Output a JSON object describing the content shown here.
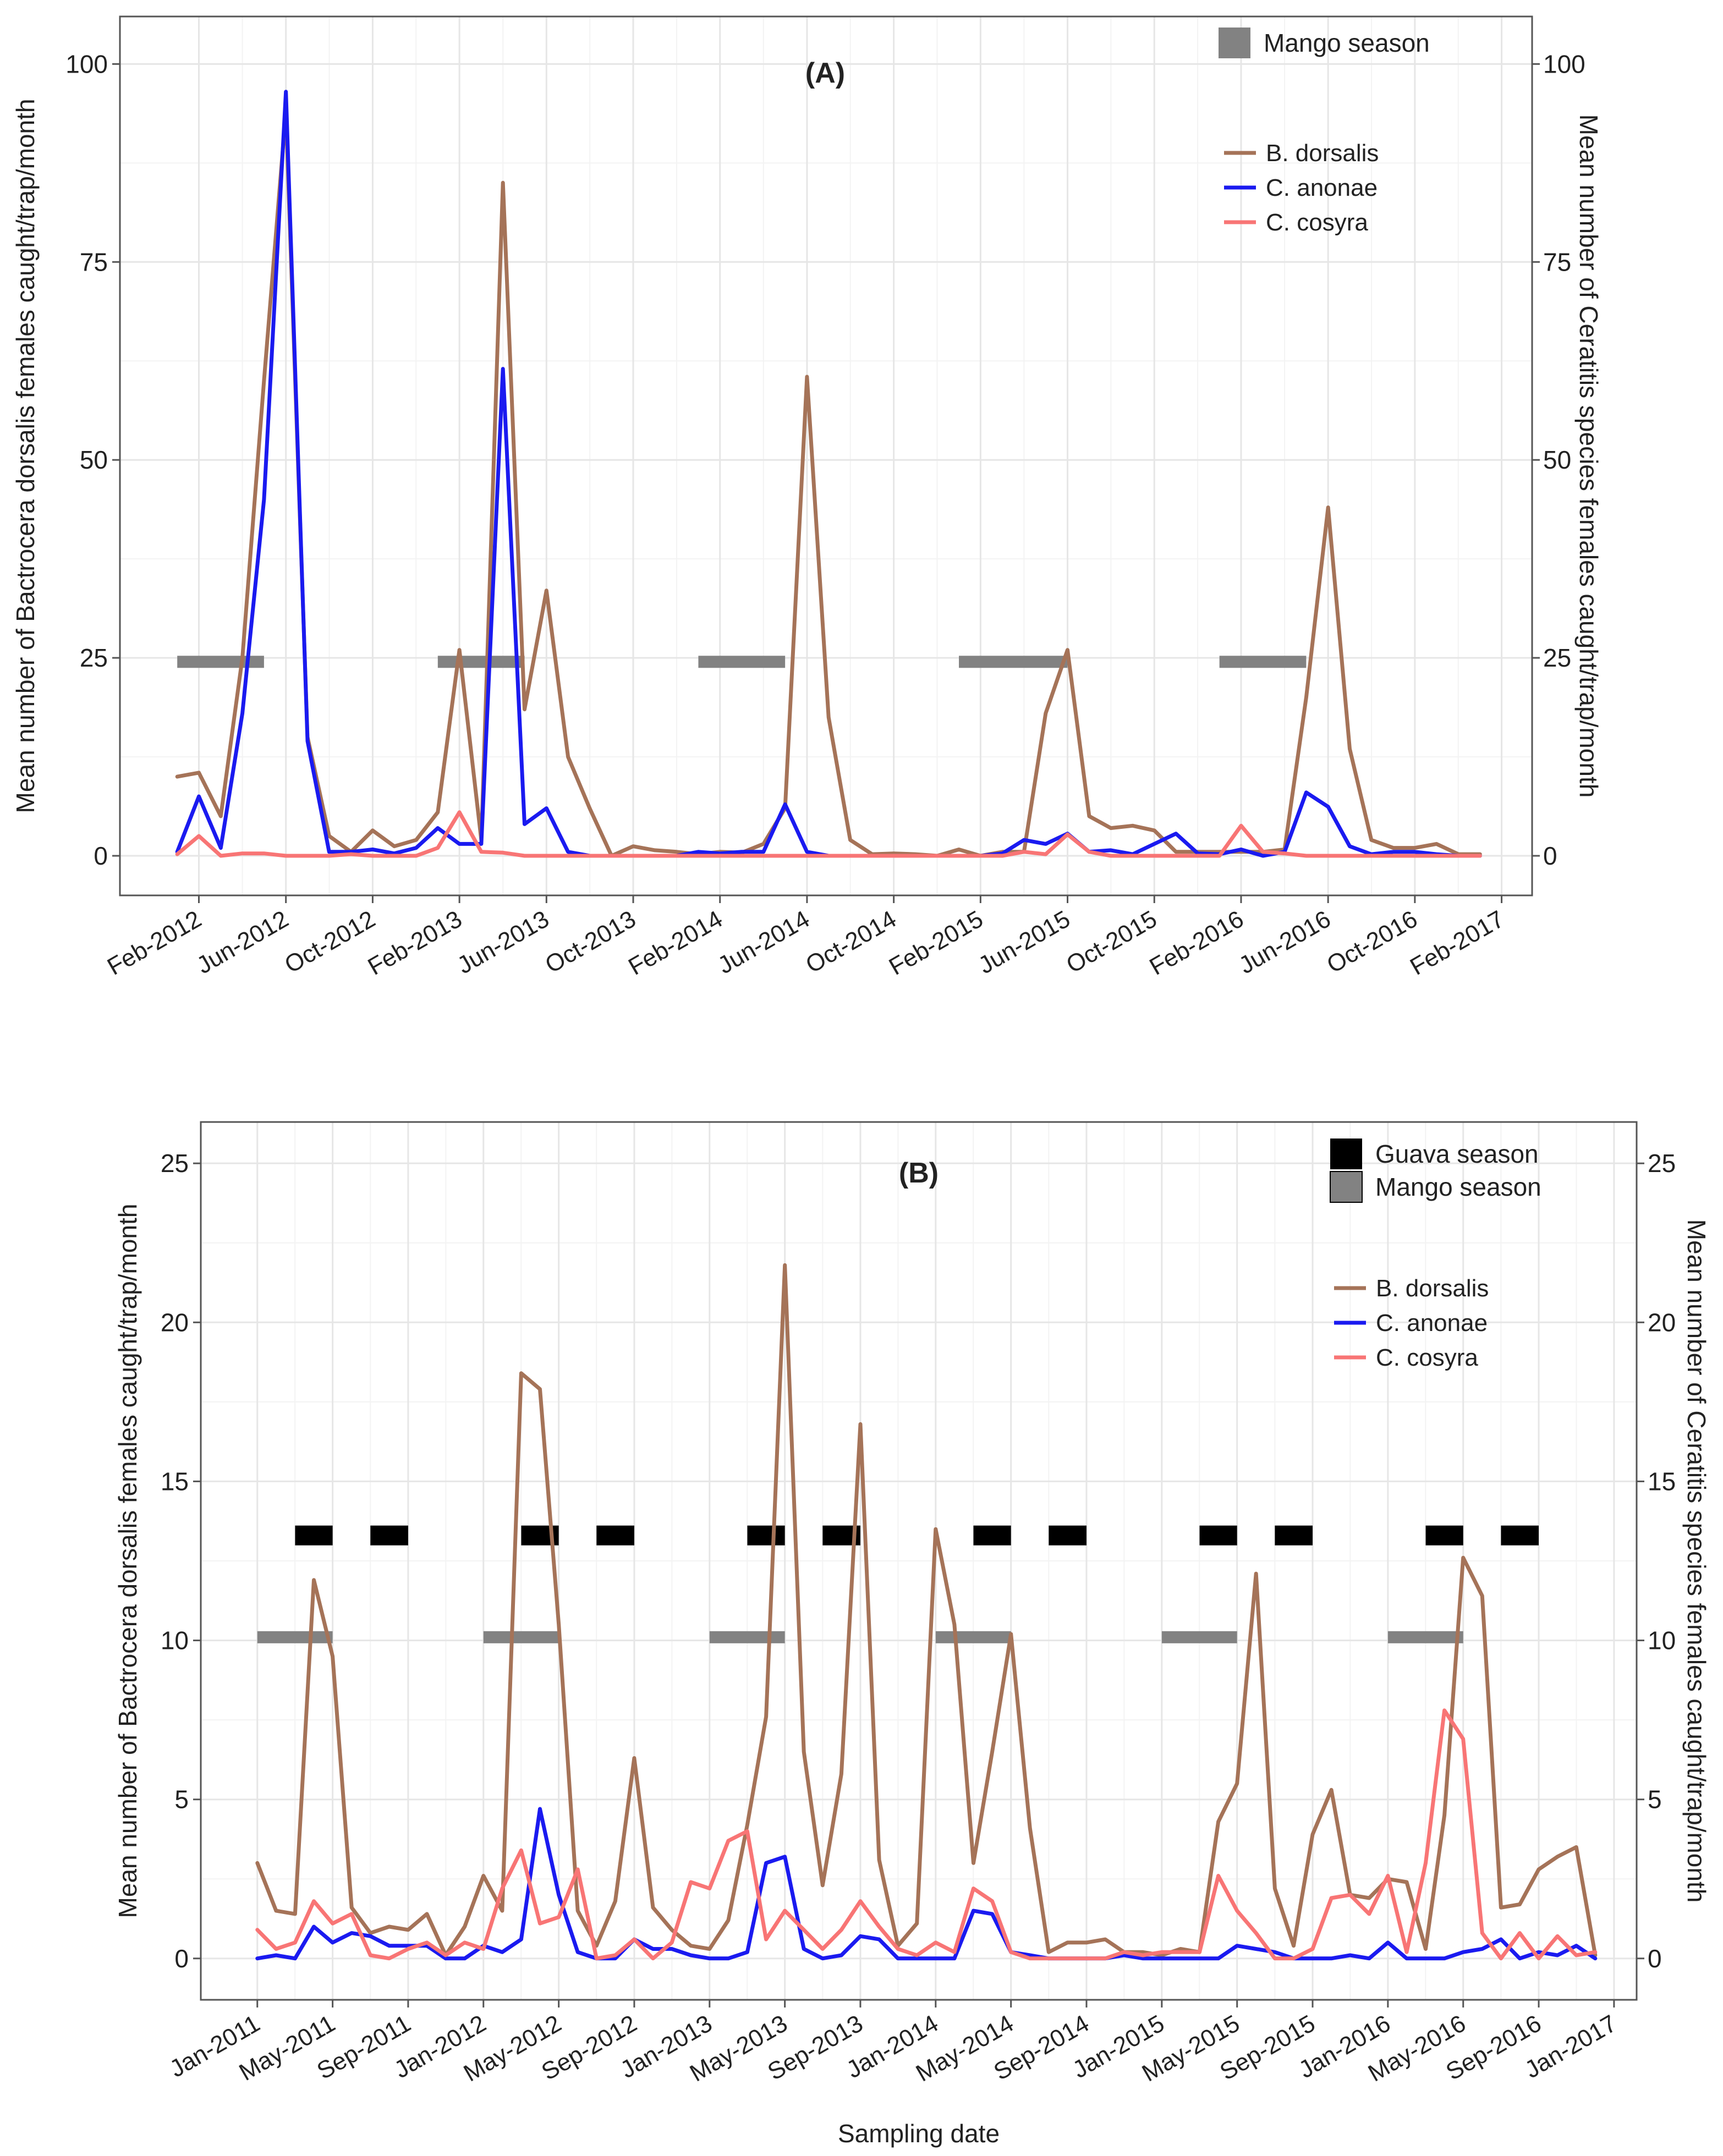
{
  "colors": {
    "bdorsalis": "#A57358",
    "canonae": "#1A1AF0",
    "ccosyra": "#F87575",
    "mango": "#828282",
    "guava": "#000000",
    "grid_major": "#E6E6E6",
    "grid_minor": "#F3F3F3",
    "axis": "#555555"
  },
  "chart_data": [
    {
      "type": "line",
      "panel_label": "(A)",
      "title": "",
      "xlabel": "",
      "ylabel": "Mean number of Bactrocera dorsalis females caught/trap/month",
      "ylabel_right": "Mean number of Ceratitis species females caught/trap/month",
      "grid": true,
      "legend_position": "top-right",
      "xlim": [
        2011.78,
        2017.2
      ],
      "ylim": [
        -5,
        106
      ],
      "x_ticks": [
        2012.083,
        2012.417,
        2012.75,
        2013.083,
        2013.417,
        2013.75,
        2014.083,
        2014.417,
        2014.75,
        2015.083,
        2015.417,
        2015.75,
        2016.083,
        2016.417,
        2016.75,
        2017.083
      ],
      "x_tick_labels": [
        "Feb-2012",
        "Jun-2012",
        "Oct-2012",
        "Feb-2013",
        "Jun-2013",
        "Oct-2013",
        "Feb-2014",
        "Jun-2014",
        "Oct-2014",
        "Feb-2015",
        "Jun-2015",
        "Oct-2015",
        "Feb-2016",
        "Jun-2016",
        "Oct-2016",
        "Feb-2017"
      ],
      "y_ticks": [
        0,
        25,
        50,
        75,
        100
      ],
      "y_tick_labels": [
        "0",
        "25",
        "50",
        "75",
        "100"
      ],
      "y_right_tick_labels": [
        "0",
        "25",
        "50",
        "75",
        "100"
      ],
      "season_legend": [
        {
          "key": "mango",
          "label": "Mango season"
        }
      ],
      "seasons": [
        {
          "type": "mango",
          "y": 24.5,
          "start": 2012.0,
          "end": 2012.333
        },
        {
          "type": "mango",
          "y": 24.5,
          "start": 2013.0,
          "end": 2013.333
        },
        {
          "type": "mango",
          "y": 24.5,
          "start": 2014.0,
          "end": 2014.333
        },
        {
          "type": "mango",
          "y": 24.5,
          "start": 2015.0,
          "end": 2015.417
        },
        {
          "type": "mango",
          "y": 24.5,
          "start": 2016.0,
          "end": 2016.333
        }
      ],
      "x": [
        2012.0,
        2012.083,
        2012.167,
        2012.25,
        2012.333,
        2012.417,
        2012.5,
        2012.583,
        2012.667,
        2012.75,
        2012.833,
        2012.917,
        2013.0,
        2013.083,
        2013.167,
        2013.25,
        2013.333,
        2013.417,
        2013.5,
        2013.583,
        2013.667,
        2013.75,
        2013.833,
        2013.917,
        2014.0,
        2014.083,
        2014.167,
        2014.25,
        2014.333,
        2014.417,
        2014.5,
        2014.583,
        2014.667,
        2014.75,
        2014.833,
        2014.917,
        2015.0,
        2015.083,
        2015.167,
        2015.25,
        2015.333,
        2015.417,
        2015.5,
        2015.583,
        2015.667,
        2015.75,
        2015.833,
        2015.917,
        2016.0,
        2016.083,
        2016.167,
        2016.25,
        2016.333,
        2016.417,
        2016.5,
        2016.583,
        2016.667,
        2016.75,
        2016.833,
        2016.917,
        2017.0
      ],
      "series": [
        {
          "name": "B. dorsalis",
          "color_key": "bdorsalis",
          "values": [
            10,
            10.5,
            5,
            25,
            60,
            94,
            15,
            2.5,
            0.5,
            3.2,
            1.2,
            2,
            5.5,
            26,
            2,
            85,
            18.5,
            33.5,
            12.5,
            6,
            0,
            1.2,
            0.7,
            0.5,
            0.2,
            0.5,
            0.4,
            1.5,
            6,
            60.5,
            17.5,
            2,
            0.2,
            0.3,
            0.2,
            0,
            0.8,
            0,
            0.5,
            0.5,
            18,
            26,
            5,
            3.5,
            3.8,
            3.2,
            0.5,
            0.5,
            0.5,
            0.5,
            0.5,
            0.8,
            20,
            44,
            13.5,
            2,
            1,
            1,
            1.5,
            0.2,
            0.2
          ]
        },
        {
          "name": "C. anonae",
          "color_key": "canonae",
          "values": [
            0.5,
            7.5,
            1,
            18,
            45,
            96.5,
            14.5,
            0.5,
            0.5,
            0.8,
            0.3,
            1,
            3.5,
            1.5,
            1.5,
            61.5,
            4,
            6,
            0.5,
            0,
            0,
            0,
            0,
            0,
            0.5,
            0.3,
            0.5,
            0.5,
            6.5,
            0.5,
            0,
            0,
            0,
            0,
            0,
            0,
            0,
            0,
            0.3,
            2,
            1.5,
            2.8,
            0.5,
            0.7,
            0.2,
            1.5,
            2.8,
            0.3,
            0.2,
            0.8,
            0,
            0.5,
            8,
            6.2,
            1.2,
            0.2,
            0.5,
            0.5,
            0.2,
            0,
            0
          ]
        },
        {
          "name": "C. cosyra",
          "color_key": "ccosyra",
          "values": [
            0.2,
            2.5,
            0,
            0.3,
            0.3,
            0,
            0,
            0,
            0.2,
            0,
            0,
            0,
            1,
            5.5,
            0.5,
            0.4,
            0,
            0,
            0,
            0,
            0,
            0,
            0,
            0,
            0,
            0,
            0,
            0,
            0,
            0,
            0,
            0,
            0,
            0,
            0,
            0,
            0,
            0,
            0,
            0.5,
            0.2,
            2.7,
            0.5,
            0,
            0,
            0,
            0,
            0,
            0,
            3.8,
            0.5,
            0.3,
            0,
            0,
            0,
            0,
            0,
            0,
            0,
            0,
            0
          ]
        }
      ]
    },
    {
      "type": "line",
      "panel_label": "(B)",
      "title": "",
      "xlabel": "Sampling date",
      "ylabel": "Mean number of Bactrocera dorsalis females caught/trap/month",
      "ylabel_right": "Mean number of Ceratitis species females caught/trap/month",
      "grid": true,
      "legend_position": "top-right",
      "xlim": [
        2010.75,
        2017.1
      ],
      "ylim": [
        -1.3,
        26.3
      ],
      "x_ticks": [
        2011.0,
        2011.333,
        2011.667,
        2012.0,
        2012.333,
        2012.667,
        2013.0,
        2013.333,
        2013.667,
        2014.0,
        2014.333,
        2014.667,
        2015.0,
        2015.333,
        2015.667,
        2016.0,
        2016.333,
        2016.667,
        2017.0
      ],
      "x_tick_labels": [
        "Jan-2011",
        "May-2011",
        "Sep-2011",
        "Jan-2012",
        "May-2012",
        "Sep-2012",
        "Jan-2013",
        "May-2013",
        "Sep-2013",
        "Jan-2014",
        "May-2014",
        "Sep-2014",
        "Jan-2015",
        "May-2015",
        "Sep-2015",
        "Jan-2016",
        "May-2016",
        "Sep-2016",
        "Jan-2017"
      ],
      "y_ticks": [
        0,
        5,
        10,
        15,
        20,
        25
      ],
      "y_tick_labels": [
        "0",
        "5",
        "10",
        "15",
        "20",
        "25"
      ],
      "y_right_tick_labels": [
        "0",
        "5",
        "10",
        "15",
        "20",
        "25"
      ],
      "season_legend": [
        {
          "key": "guava",
          "label": "Guava season"
        },
        {
          "key": "mango",
          "label": "Mango season"
        }
      ],
      "seasons": [
        {
          "type": "mango",
          "y": 10.1,
          "start": 2011.0,
          "end": 2011.333
        },
        {
          "type": "mango",
          "y": 10.1,
          "start": 2012.0,
          "end": 2012.333
        },
        {
          "type": "mango",
          "y": 10.1,
          "start": 2013.0,
          "end": 2013.333
        },
        {
          "type": "mango",
          "y": 10.1,
          "start": 2014.0,
          "end": 2014.333
        },
        {
          "type": "mango",
          "y": 10.1,
          "start": 2015.0,
          "end": 2015.333
        },
        {
          "type": "mango",
          "y": 10.1,
          "start": 2016.0,
          "end": 2016.333
        },
        {
          "type": "guava",
          "y": 13.3,
          "start": 2011.167,
          "end": 2011.333
        },
        {
          "type": "guava",
          "y": 13.3,
          "start": 2011.5,
          "end": 2011.667
        },
        {
          "type": "guava",
          "y": 13.3,
          "start": 2012.167,
          "end": 2012.333
        },
        {
          "type": "guava",
          "y": 13.3,
          "start": 2012.5,
          "end": 2012.667
        },
        {
          "type": "guava",
          "y": 13.3,
          "start": 2013.167,
          "end": 2013.333
        },
        {
          "type": "guava",
          "y": 13.3,
          "start": 2013.5,
          "end": 2013.667
        },
        {
          "type": "guava",
          "y": 13.3,
          "start": 2014.167,
          "end": 2014.333
        },
        {
          "type": "guava",
          "y": 13.3,
          "start": 2014.5,
          "end": 2014.667
        },
        {
          "type": "guava",
          "y": 13.3,
          "start": 2015.167,
          "end": 2015.333
        },
        {
          "type": "guava",
          "y": 13.3,
          "start": 2015.5,
          "end": 2015.667
        },
        {
          "type": "guava",
          "y": 13.3,
          "start": 2016.167,
          "end": 2016.333
        },
        {
          "type": "guava",
          "y": 13.3,
          "start": 2016.5,
          "end": 2016.667
        }
      ],
      "x": [
        2011.0,
        2011.083,
        2011.167,
        2011.25,
        2011.333,
        2011.417,
        2011.5,
        2011.583,
        2011.667,
        2011.75,
        2011.833,
        2011.917,
        2012.0,
        2012.083,
        2012.167,
        2012.25,
        2012.333,
        2012.417,
        2012.5,
        2012.583,
        2012.667,
        2012.75,
        2012.833,
        2012.917,
        2013.0,
        2013.083,
        2013.167,
        2013.25,
        2013.333,
        2013.417,
        2013.5,
        2013.583,
        2013.667,
        2013.75,
        2013.833,
        2013.917,
        2014.0,
        2014.083,
        2014.167,
        2014.25,
        2014.333,
        2014.417,
        2014.5,
        2014.583,
        2014.667,
        2014.75,
        2014.833,
        2014.917,
        2015.0,
        2015.083,
        2015.167,
        2015.25,
        2015.333,
        2015.417,
        2015.5,
        2015.583,
        2015.667,
        2015.75,
        2015.833,
        2015.917,
        2016.0,
        2016.083,
        2016.167,
        2016.25,
        2016.333,
        2016.417,
        2016.5,
        2016.583,
        2016.667,
        2016.75,
        2016.833,
        2016.917
      ],
      "series": [
        {
          "name": "B. dorsalis",
          "color_key": "bdorsalis",
          "values": [
            3.0,
            1.5,
            1.4,
            11.9,
            9.5,
            1.6,
            0.8,
            1.0,
            0.9,
            1.4,
            0.1,
            1.0,
            2.6,
            1.5,
            18.4,
            17.9,
            10.5,
            1.5,
            0.4,
            1.8,
            6.3,
            1.6,
            0.9,
            0.4,
            0.3,
            1.2,
            4.2,
            7.6,
            21.8,
            6.5,
            2.3,
            5.8,
            16.8,
            3.1,
            0.4,
            1.1,
            13.5,
            10.5,
            3.0,
            6.5,
            10.2,
            4.1,
            0.2,
            0.5,
            0.5,
            0.6,
            0.2,
            0.2,
            0.1,
            0.3,
            0.2,
            4.3,
            5.5,
            12.1,
            2.2,
            0.4,
            3.9,
            5.3,
            2.0,
            1.9,
            2.5,
            2.4,
            0.3,
            4.5,
            12.6,
            11.4,
            1.6,
            1.7,
            2.8,
            3.2,
            3.5,
            0.1
          ]
        },
        {
          "name": "C. anonae",
          "color_key": "canonae",
          "values": [
            0,
            0.1,
            0,
            1.0,
            0.5,
            0.8,
            0.7,
            0.4,
            0.4,
            0.4,
            0,
            0,
            0.4,
            0.2,
            0.6,
            4.7,
            2.0,
            0.2,
            0,
            0,
            0.6,
            0.3,
            0.3,
            0.1,
            0,
            0,
            0.2,
            3.0,
            3.2,
            0.3,
            0,
            0.1,
            0.7,
            0.6,
            0,
            0,
            0,
            0,
            1.5,
            1.4,
            0.2,
            0.1,
            0,
            0,
            0,
            0,
            0.1,
            0,
            0,
            0,
            0,
            0,
            0.4,
            0.3,
            0.2,
            0,
            0,
            0,
            0.1,
            0,
            0.5,
            0,
            0,
            0,
            0.2,
            0.3,
            0.6,
            0,
            0.2,
            0.1,
            0.4,
            0
          ]
        },
        {
          "name": "C. cosyra",
          "color_key": "ccosyra",
          "values": [
            0.9,
            0.3,
            0.5,
            1.8,
            1.1,
            1.4,
            0.1,
            0,
            0.3,
            0.5,
            0.1,
            0.5,
            0.3,
            2.2,
            3.4,
            1.1,
            1.3,
            2.8,
            0,
            0.1,
            0.6,
            0,
            0.5,
            2.4,
            2.2,
            3.7,
            4.0,
            0.6,
            1.5,
            0.9,
            0.3,
            0.9,
            1.8,
            1.0,
            0.3,
            0.1,
            0.5,
            0.2,
            2.2,
            1.8,
            0.2,
            0,
            0,
            0,
            0,
            0,
            0.2,
            0.1,
            0.2,
            0.2,
            0.2,
            2.6,
            1.5,
            0.8,
            0,
            0,
            0.3,
            1.9,
            2.0,
            1.4,
            2.6,
            0.2,
            3.0,
            7.8,
            6.9,
            0.8,
            0,
            0.8,
            0,
            0.7,
            0.1,
            0.2
          ]
        }
      ]
    }
  ]
}
